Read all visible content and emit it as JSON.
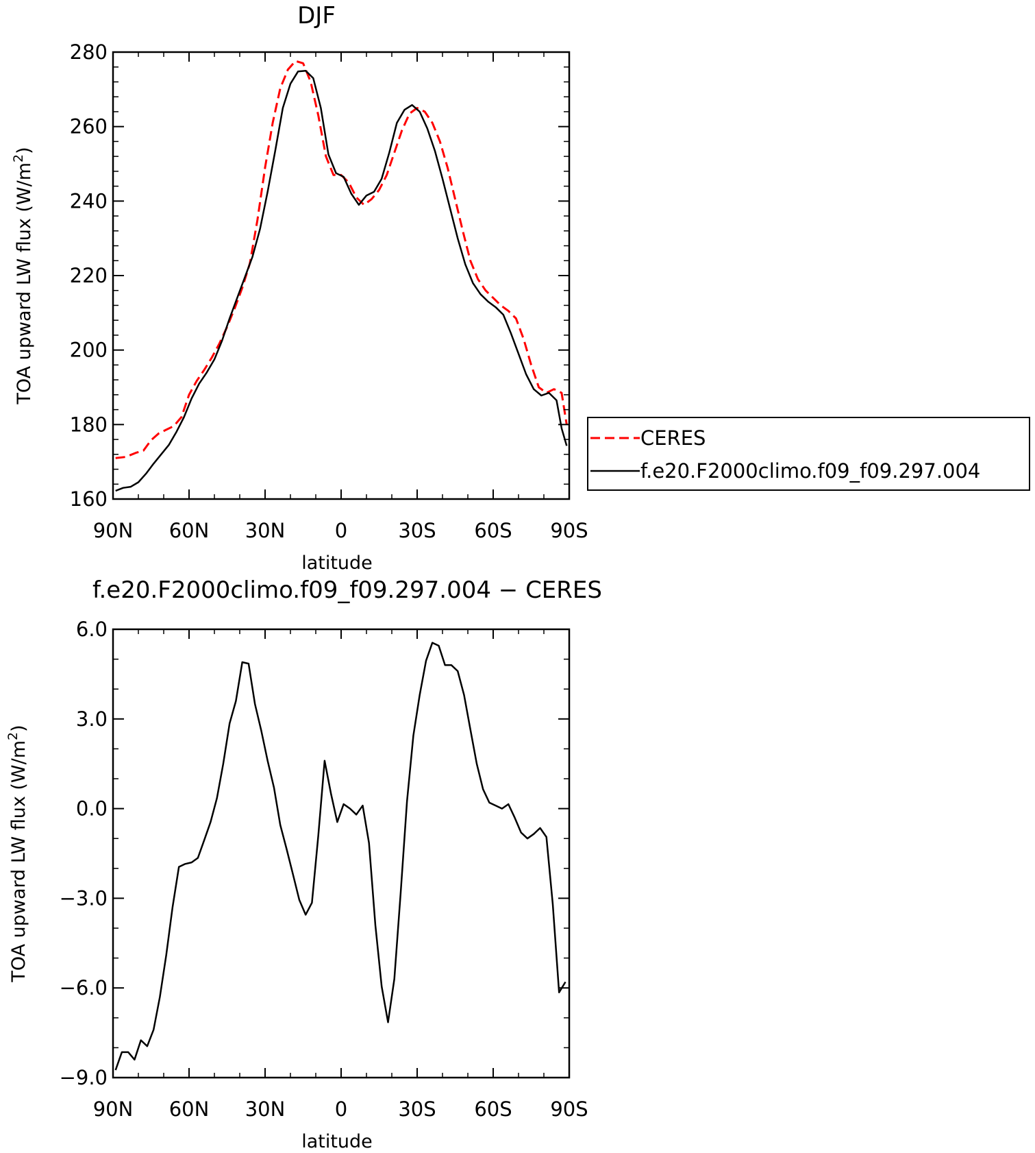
{
  "chart_data": [
    {
      "type": "line",
      "title": "DJF",
      "xlabel": "latitude",
      "ylabel_text": "TOA upward LW flux (W/m",
      "ylabel_sup": "2",
      "ylabel_close": ")",
      "xlim": [
        -90,
        90
      ],
      "ylim": [
        160,
        280
      ],
      "x_ticks": [
        -90,
        -60,
        -30,
        0,
        30,
        60,
        90
      ],
      "x_tick_labels": [
        "90N",
        "60N",
        "30N",
        "0",
        "30S",
        "60S",
        "90S"
      ],
      "y_ticks": [
        160,
        180,
        200,
        220,
        240,
        260,
        280
      ],
      "y_tick_labels": [
        "160",
        "180",
        "200",
        "220",
        "240",
        "260",
        "280"
      ],
      "legend_position": "right, outside plot",
      "series": [
        {
          "name": "CERES",
          "color": "#ff0000",
          "dash": "dashed",
          "x": [
            -89,
            -85,
            -81,
            -78,
            -75,
            -72,
            -69,
            -66,
            -63,
            -60,
            -57,
            -54,
            -51,
            -48,
            -45,
            -42,
            -39,
            -36,
            -33,
            -30,
            -27,
            -24,
            -21,
            -18,
            -15,
            -12,
            -9,
            -6,
            -3,
            0,
            3,
            6,
            9,
            12,
            15,
            18,
            21,
            24,
            27,
            30,
            33,
            36,
            39,
            42,
            45,
            48,
            51,
            54,
            57,
            60,
            63,
            66,
            69,
            72,
            75,
            78,
            81,
            84,
            87,
            89
          ],
          "y": [
            171.0,
            171.3,
            172.4,
            173.0,
            175.8,
            177.6,
            178.6,
            179.6,
            182.0,
            188.0,
            191.7,
            194.7,
            198.0,
            201.8,
            206.2,
            211.2,
            216.7,
            223.3,
            235.0,
            249.0,
            261.0,
            270.3,
            275.3,
            277.6,
            277.0,
            272.0,
            263.0,
            252.0,
            247.0,
            247.0,
            245.0,
            241.0,
            239.0,
            240.5,
            243.0,
            247.0,
            253.0,
            259.0,
            263.5,
            265.0,
            264.0,
            261.0,
            256.0,
            249.0,
            240.5,
            232.0,
            224.0,
            219.0,
            216.0,
            214.0,
            212.0,
            210.5,
            208.5,
            203.0,
            196.0,
            190.0,
            188.5,
            189.5,
            188.5,
            180.0
          ]
        },
        {
          "name": "f.e20.F2000climo.f09_f09.297.004",
          "color": "#000000",
          "dash": "solid",
          "x": [
            -89,
            -86,
            -83,
            -80,
            -77,
            -74,
            -71,
            -68,
            -65,
            -62,
            -59,
            -56,
            -53,
            -50,
            -47,
            -44,
            -41,
            -38,
            -35,
            -32,
            -29,
            -26,
            -23,
            -20,
            -17,
            -14,
            -11,
            -8,
            -5,
            -2,
            1,
            4,
            7,
            10,
            13,
            16,
            19,
            22,
            25,
            28,
            31,
            34,
            37,
            40,
            43,
            46,
            49,
            52,
            55,
            58,
            61,
            64,
            67,
            70,
            73,
            76,
            79,
            82,
            85,
            87,
            89
          ],
          "y": [
            162.2,
            163.0,
            163.3,
            164.5,
            166.8,
            169.5,
            172.0,
            174.5,
            178.0,
            182.0,
            187.0,
            191.0,
            194.0,
            197.5,
            202.5,
            208.5,
            214.0,
            219.5,
            225.0,
            232.5,
            242.5,
            253.5,
            265.0,
            271.5,
            274.8,
            275.0,
            273.0,
            265.0,
            252.5,
            247.5,
            246.5,
            242.0,
            239.0,
            241.5,
            242.5,
            246.0,
            253.0,
            261.0,
            264.5,
            265.8,
            264.0,
            259.5,
            253.5,
            246.0,
            238.0,
            230.0,
            223.0,
            218.0,
            215.0,
            213.0,
            211.5,
            209.5,
            204.5,
            199.0,
            193.5,
            189.5,
            187.8,
            188.5,
            186.5,
            179.0,
            174.3
          ]
        }
      ]
    },
    {
      "type": "line",
      "title": "f.e20.F2000climo.f09_f09.297.004 − CERES",
      "xlabel": "latitude",
      "ylabel_text": "TOA upward LW flux (W/m",
      "ylabel_sup": "2",
      "ylabel_close": ")",
      "xlim": [
        -90,
        90
      ],
      "ylim": [
        -9.0,
        6.0
      ],
      "x_ticks": [
        -90,
        -60,
        -30,
        0,
        30,
        60,
        90
      ],
      "x_tick_labels": [
        "90N",
        "60N",
        "30N",
        "0",
        "30S",
        "60S",
        "90S"
      ],
      "y_ticks": [
        -9.0,
        -6.0,
        -3.0,
        0.0,
        3.0,
        6.0
      ],
      "y_tick_labels": [
        "−9.0",
        "−6.0",
        "−3.0",
        "0.0",
        "3.0",
        "6.0"
      ],
      "series": [
        {
          "color": "#000000",
          "dash": "solid",
          "x": [
            -89,
            -86.5,
            -84,
            -81.5,
            -79,
            -76.5,
            -74,
            -71.5,
            -69,
            -66.5,
            -64,
            -61.5,
            -59,
            -56.5,
            -54,
            -51.5,
            -49,
            -46.5,
            -44,
            -41.5,
            -39,
            -36.5,
            -34,
            -31.5,
            -29,
            -26.5,
            -24,
            -21.5,
            -19,
            -16.5,
            -14,
            -11.5,
            -9,
            -6.5,
            -4,
            -1.5,
            1,
            3.5,
            6,
            8.5,
            11,
            13.5,
            16,
            18.5,
            21,
            23.5,
            26,
            28.5,
            31,
            33.5,
            36,
            38.5,
            41,
            43.5,
            46,
            48.5,
            51,
            53.5,
            56,
            58.5,
            61,
            63.5,
            66,
            68.5,
            71,
            73.5,
            76,
            78.5,
            81,
            83.5,
            86,
            88.5
          ],
          "y": [
            -8.75,
            -8.15,
            -8.15,
            -8.4,
            -7.75,
            -7.95,
            -7.4,
            -6.3,
            -4.9,
            -3.3,
            -1.95,
            -1.85,
            -1.8,
            -1.65,
            -1.05,
            -0.45,
            0.35,
            1.5,
            2.85,
            3.6,
            4.9,
            4.85,
            3.5,
            2.6,
            1.6,
            0.7,
            -0.55,
            -1.35,
            -2.2,
            -3.05,
            -3.55,
            -3.15,
            -0.9,
            1.6,
            0.5,
            -0.45,
            0.15,
            0.0,
            -0.2,
            0.1,
            -1.15,
            -3.9,
            -5.95,
            -7.15,
            -5.7,
            -2.8,
            0.25,
            2.45,
            3.8,
            4.95,
            5.55,
            5.45,
            4.8,
            4.8,
            4.6,
            3.8,
            2.65,
            1.5,
            0.65,
            0.2,
            0.1,
            0.0,
            0.15,
            -0.3,
            -0.8,
            -1.0,
            -0.85,
            -0.65,
            -0.95,
            -3.2,
            -6.15,
            -5.8
          ]
        }
      ]
    }
  ]
}
